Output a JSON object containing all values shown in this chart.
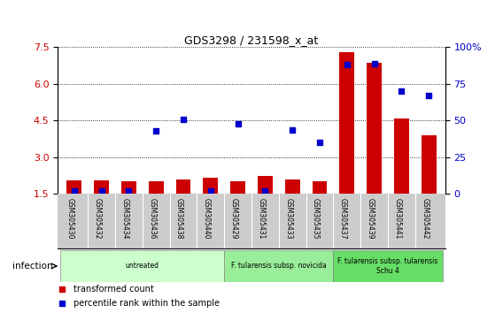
{
  "title": "GDS3298 / 231598_x_at",
  "samples": [
    "GSM305430",
    "GSM305432",
    "GSM305434",
    "GSM305436",
    "GSM305438",
    "GSM305440",
    "GSM305429",
    "GSM305431",
    "GSM305433",
    "GSM305435",
    "GSM305437",
    "GSM305439",
    "GSM305441",
    "GSM305442"
  ],
  "transformed_count": [
    2.05,
    2.05,
    2.03,
    2.02,
    2.08,
    2.15,
    2.03,
    2.25,
    2.08,
    2.03,
    7.3,
    6.85,
    4.6,
    3.9
  ],
  "percentile_rank": [
    2.0,
    2.0,
    2.0,
    43.0,
    50.5,
    2.0,
    47.5,
    2.0,
    43.5,
    35.0,
    88.0,
    88.5,
    70.0,
    67.0
  ],
  "ylim_left": [
    1.5,
    7.5
  ],
  "ylim_right": [
    0,
    100
  ],
  "yticks_left": [
    1.5,
    3.0,
    4.5,
    6.0,
    7.5
  ],
  "yticks_right": [
    0,
    25,
    50,
    75,
    100
  ],
  "bar_color": "#cc0000",
  "dot_color": "#0000cc",
  "bar_bottom": 1.5,
  "groups": [
    {
      "label": "untreated",
      "start": 0,
      "end": 5,
      "color": "#ccffcc"
    },
    {
      "label": "F. tularensis subsp. novicida",
      "start": 6,
      "end": 9,
      "color": "#99ee99"
    },
    {
      "label": "F. tularensis subsp. tularensis\nSchu 4",
      "start": 10,
      "end": 13,
      "color": "#66dd66"
    }
  ],
  "infection_label": "infection",
  "legend_items": [
    {
      "label": "transformed count",
      "color": "#cc0000"
    },
    {
      "label": "percentile rank within the sample",
      "color": "#0000cc"
    }
  ],
  "left_tick_color": "#cc0000",
  "right_tick_color": "#0000cc",
  "tick_area_color": "#cccccc",
  "group_border_color": "#888888"
}
